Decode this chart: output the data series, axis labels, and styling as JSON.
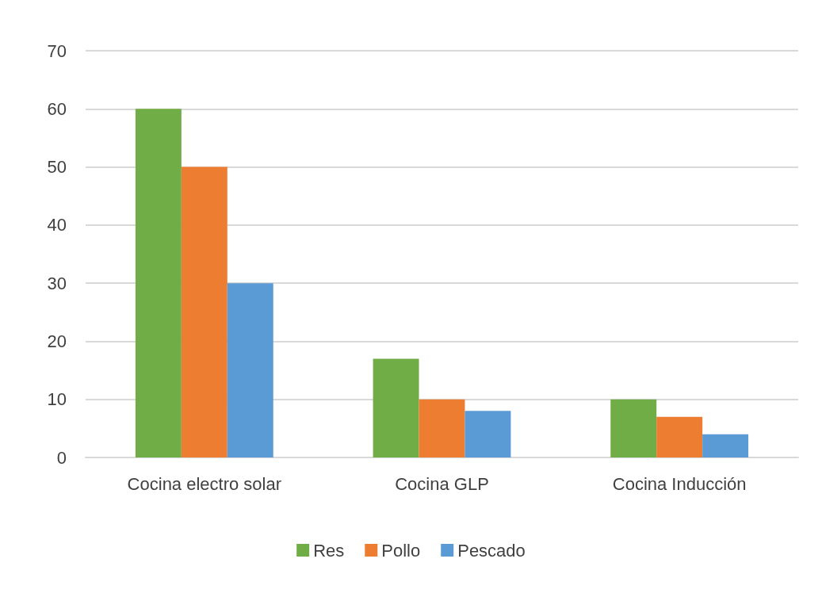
{
  "chart_data": {
    "type": "bar",
    "categories": [
      "Cocina electro solar",
      "Cocina GLP",
      "Cocina Inducción"
    ],
    "series": [
      {
        "name": "Res",
        "color": "#70ad47",
        "values": [
          60,
          17,
          10
        ]
      },
      {
        "name": "Pollo",
        "color": "#ed7d31",
        "values": [
          50,
          10,
          7
        ]
      },
      {
        "name": "Pescado",
        "color": "#5b9bd5",
        "values": [
          30,
          8,
          4
        ]
      }
    ],
    "ylim": [
      0,
      70
    ],
    "yticks": [
      0,
      10,
      20,
      30,
      40,
      50,
      60,
      70
    ],
    "grid": "y",
    "legend": "bottom"
  }
}
